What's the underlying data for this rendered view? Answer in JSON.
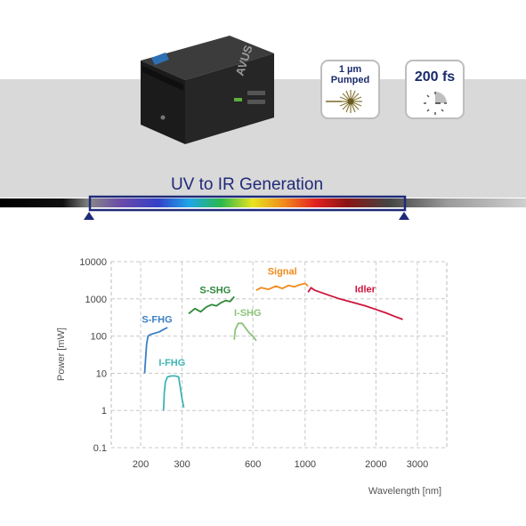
{
  "header": {
    "device_brand": "AVUS",
    "badge_pump": {
      "line1": "1 µm",
      "line2": "Pumped"
    },
    "badge_pulse": {
      "label": "200 fs"
    },
    "generation_title": "UV to IR Generation"
  },
  "colors": {
    "band": "#d9d9d9",
    "title_blue": "#1f2a78",
    "s_fhg": "#3a7fc4",
    "i_fhg": "#3fb5b5",
    "s_shg": "#2e8a3a",
    "i_shg": "#8cc37a",
    "signal": "#f08a1c",
    "idler": "#d0143c"
  },
  "chart_data": {
    "type": "line",
    "xlabel": "Wavelength [nm]",
    "ylabel": "Power [mW]",
    "xscale": "log",
    "yscale": "log",
    "xlim": [
      150,
      4000
    ],
    "ylim": [
      0.1,
      10000
    ],
    "xticks": [
      200,
      300,
      600,
      1000,
      2000,
      3000
    ],
    "yticks": [
      0.1,
      1,
      10,
      100,
      1000,
      10000
    ],
    "xtick_labels": [
      "200",
      "300",
      "600",
      "1000",
      "2000",
      "3000"
    ],
    "ytick_labels": [
      "0.1",
      "1",
      "10",
      "100",
      "1000",
      "10000"
    ],
    "grid": true,
    "series": [
      {
        "name": "S-FHG",
        "color": "#3a7fc4",
        "x": [
          208,
          210,
          212,
          215,
          220,
          230,
          240,
          250,
          260
        ],
        "y": [
          10,
          25,
          60,
          100,
          110,
          120,
          130,
          150,
          170
        ]
      },
      {
        "name": "I-FHG",
        "color": "#3fb5b5",
        "x": [
          250,
          252,
          255,
          260,
          270,
          280,
          290,
          295,
          300,
          305
        ],
        "y": [
          1,
          3,
          6,
          8,
          8.5,
          8.5,
          8,
          4,
          2,
          1.2
        ]
      },
      {
        "name": "S-SHG",
        "color": "#2e8a3a",
        "x": [
          320,
          340,
          360,
          380,
          400,
          420,
          440,
          460,
          480,
          500
        ],
        "y": [
          400,
          550,
          450,
          600,
          700,
          650,
          800,
          900,
          850,
          1150
        ]
      },
      {
        "name": "I-SHG",
        "color": "#8cc37a",
        "x": [
          500,
          505,
          520,
          540,
          560,
          580,
          600,
          620
        ],
        "y": [
          80,
          150,
          220,
          220,
          160,
          120,
          100,
          75
        ]
      },
      {
        "name": "Signal",
        "color": "#f08a1c",
        "x": [
          620,
          650,
          700,
          750,
          800,
          850,
          900,
          950,
          1000,
          1030
        ],
        "y": [
          1700,
          2000,
          1800,
          2200,
          1900,
          2300,
          2100,
          2400,
          2600,
          2200
        ]
      },
      {
        "name": "Idler",
        "color": "#d0143c",
        "x": [
          1030,
          1060,
          1100,
          1200,
          1400,
          1600,
          1800,
          2000,
          2200,
          2400,
          2600
        ],
        "y": [
          1500,
          2000,
          1700,
          1400,
          1000,
          800,
          650,
          520,
          420,
          340,
          280
        ]
      }
    ],
    "series_labels": [
      {
        "name": "S-FHG",
        "text": "S-FHG",
        "x": 235,
        "y": 230
      },
      {
        "name": "I-FHG",
        "text": "I-FHG",
        "x": 272,
        "y": 16
      },
      {
        "name": "S-SHG",
        "text": "S-SHG",
        "x": 415,
        "y": 1400
      },
      {
        "name": "I-SHG",
        "text": "I-SHG",
        "x": 570,
        "y": 350
      },
      {
        "name": "Signal",
        "text": "Signal",
        "x": 800,
        "y": 4500
      },
      {
        "name": "Idler",
        "text": "Idler",
        "x": 1800,
        "y": 1500
      }
    ]
  }
}
